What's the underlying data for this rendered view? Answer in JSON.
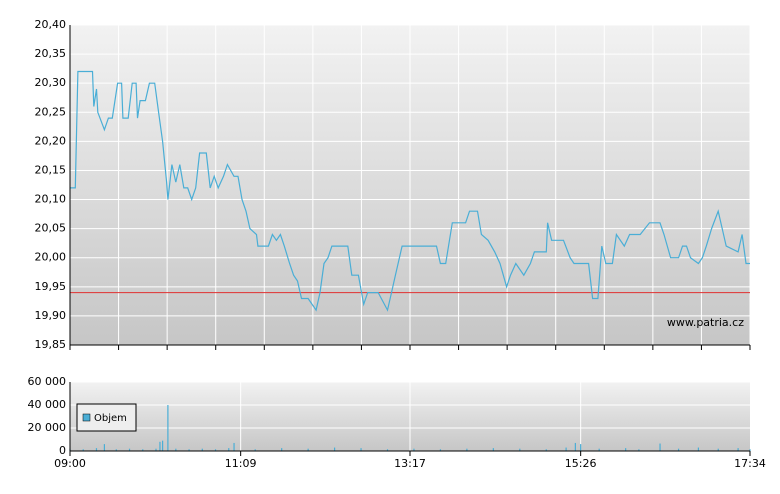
{
  "chart_data": [
    {
      "type": "line",
      "x": [
        "09:00",
        "09:04",
        "09:06",
        "09:17",
        "09:18",
        "09:20",
        "09:21",
        "09:26",
        "09:29",
        "09:32",
        "09:36",
        "09:39",
        "09:40",
        "09:44",
        "09:47",
        "09:50",
        "09:51",
        "09:53",
        "09:57",
        "10:00",
        "10:04",
        "10:07",
        "10:10",
        "10:13",
        "10:14",
        "10:17",
        "10:20",
        "10:23",
        "10:26",
        "10:29",
        "10:32",
        "10:35",
        "10:38",
        "10:43",
        "10:46",
        "10:49",
        "10:52",
        "10:56",
        "10:59",
        "11:04",
        "11:07",
        "11:10",
        "11:13",
        "11:16",
        "11:21",
        "11:22",
        "11:30",
        "11:33",
        "11:36",
        "11:39",
        "11:42",
        "11:46",
        "11:49",
        "11:52",
        "11:55",
        "12:00",
        "12:06",
        "12:09",
        "12:12",
        "12:15",
        "12:18",
        "12:30",
        "12:33",
        "12:38",
        "12:42",
        "12:45",
        "12:53",
        "13:00",
        "13:03",
        "13:06",
        "13:11",
        "13:37",
        "13:40",
        "13:44",
        "13:49",
        "13:59",
        "14:02",
        "14:08",
        "14:11",
        "14:16",
        "14:21",
        "14:25",
        "14:30",
        "14:33",
        "14:37",
        "14:43",
        "14:48",
        "14:51",
        "15:00",
        "15:01",
        "15:04",
        "15:13",
        "15:18",
        "15:21",
        "15:32",
        "15:35",
        "15:39",
        "15:42",
        "15:45",
        "15:50",
        "15:53",
        "15:59",
        "16:03",
        "16:11",
        "16:18",
        "16:26",
        "16:29",
        "16:34",
        "16:40",
        "16:43",
        "16:46",
        "16:49",
        "16:55",
        "16:58",
        "17:01",
        "17:05",
        "17:10",
        "17:13",
        "17:16",
        "17:25",
        "17:28",
        "17:31",
        "17:34"
      ],
      "values": [
        20.12,
        20.12,
        20.32,
        20.32,
        20.26,
        20.29,
        20.25,
        20.22,
        20.24,
        20.24,
        20.3,
        20.3,
        20.24,
        20.24,
        20.3,
        20.3,
        20.24,
        20.27,
        20.27,
        20.3,
        20.3,
        20.25,
        20.2,
        20.13,
        20.1,
        20.16,
        20.13,
        20.16,
        20.12,
        20.12,
        20.1,
        20.12,
        20.18,
        20.18,
        20.12,
        20.14,
        20.12,
        20.14,
        20.16,
        20.14,
        20.14,
        20.1,
        20.08,
        20.05,
        20.04,
        20.02,
        20.02,
        20.04,
        20.03,
        20.04,
        20.02,
        19.99,
        19.97,
        19.96,
        19.93,
        19.93,
        19.91,
        19.94,
        19.99,
        20.0,
        20.02,
        20.02,
        19.97,
        19.97,
        19.92,
        19.94,
        19.94,
        19.91,
        19.94,
        19.97,
        20.02,
        20.02,
        19.99,
        19.99,
        20.06,
        20.06,
        20.08,
        20.08,
        20.04,
        20.03,
        20.01,
        19.99,
        19.95,
        19.97,
        19.99,
        19.97,
        19.99,
        20.01,
        20.01,
        20.06,
        20.03,
        20.03,
        20.0,
        19.99,
        19.99,
        19.93,
        19.93,
        20.02,
        19.99,
        19.99,
        20.04,
        20.02,
        20.04,
        20.04,
        20.06,
        20.06,
        20.04,
        20.0,
        20.0,
        20.02,
        20.02,
        20.0,
        19.99,
        20.0,
        20.02,
        20.05,
        20.08,
        20.05,
        20.02,
        20.01,
        20.04,
        19.99,
        19.99
      ],
      "color": "#4aaed6",
      "xlim": [
        "09:00",
        "17:34"
      ],
      "ylim": [
        19.85,
        20.4
      ],
      "yticks": [
        {
          "value": 19.85,
          "label": "19,85"
        },
        {
          "value": 19.9,
          "label": "19,90"
        },
        {
          "value": 19.95,
          "label": "19,95"
        },
        {
          "value": 20.0,
          "label": "20,00"
        },
        {
          "value": 20.05,
          "label": "20,05"
        },
        {
          "value": 20.1,
          "label": "20,10"
        },
        {
          "value": 20.15,
          "label": "20,15"
        },
        {
          "value": 20.2,
          "label": "20,20"
        },
        {
          "value": 20.25,
          "label": "20,25"
        },
        {
          "value": 20.3,
          "label": "20,30"
        },
        {
          "value": 20.35,
          "label": "20,35"
        },
        {
          "value": 20.4,
          "label": "20,40"
        }
      ],
      "reference_line": 19.94,
      "reference_color": "#e03030",
      "watermark": "www.patria.cz",
      "grid": true
    },
    {
      "type": "bar",
      "x": [
        "09:00",
        "09:10",
        "09:20",
        "09:26",
        "09:35",
        "09:45",
        "09:55",
        "10:05",
        "10:08",
        "10:10",
        "10:14",
        "10:20",
        "10:30",
        "10:40",
        "10:50",
        "11:00",
        "11:04",
        "11:20",
        "11:40",
        "12:00",
        "12:20",
        "12:40",
        "13:00",
        "13:20",
        "13:40",
        "14:00",
        "14:20",
        "14:40",
        "15:00",
        "15:15",
        "15:22",
        "15:26",
        "15:40",
        "16:00",
        "16:10",
        "16:26",
        "16:40",
        "16:55",
        "17:10",
        "17:25",
        "17:34"
      ],
      "series": [
        {
          "name": "Objem",
          "color": "#4aaed6",
          "values": [
            2000,
            1500,
            2500,
            6000,
            1500,
            2000,
            1500,
            2000,
            8000,
            9000,
            40000,
            2000,
            1500,
            2000,
            1500,
            2500,
            7000,
            1500,
            2500,
            2000,
            3000,
            2500,
            1500,
            2000,
            1500,
            2000,
            2500,
            2000,
            1500,
            3000,
            7000,
            6000,
            2000,
            2500,
            1500,
            6500,
            2000,
            3000,
            2000,
            2500,
            1500
          ]
        }
      ],
      "xlim": [
        "09:00",
        "17:34"
      ],
      "xticks": [
        "09:00",
        "11:09",
        "13:17",
        "15:26",
        "17:34"
      ],
      "ylim": [
        0,
        60000
      ],
      "yticks": [
        0,
        {
          "value": 20000,
          "label": "20 000"
        },
        {
          "value": 40000,
          "label": "40 000"
        },
        {
          "value": 60000,
          "label": "60 000"
        }
      ],
      "legend": "top-left",
      "grid": true
    }
  ]
}
